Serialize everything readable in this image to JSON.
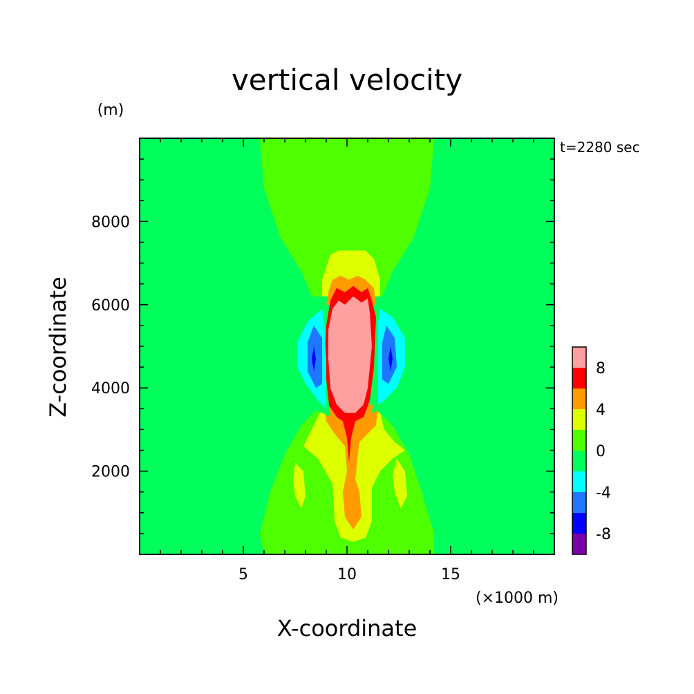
{
  "chart_data": {
    "type": "heatmap",
    "subtype": "filled-contour",
    "title": "vertical velocity",
    "y_unit_label": "(m)",
    "x_unit_label": "(×1000 m)",
    "time_label": "t=2280 sec",
    "xlabel": "X-coordinate",
    "ylabel": "Z-coordinate",
    "xlim": [
      0,
      20
    ],
    "ylim": [
      0,
      10000
    ],
    "x_ticks": [
      5,
      10,
      15
    ],
    "x_tick_labels": [
      "5",
      "10",
      "15"
    ],
    "y_ticks": [
      2000,
      4000,
      6000,
      8000
    ],
    "y_tick_labels": [
      "2000",
      "4000",
      "6000",
      "8000"
    ],
    "colorbar": {
      "levels": [
        -10,
        -8,
        -6,
        -4,
        -2,
        0,
        2,
        4,
        6,
        8,
        10
      ],
      "tick_values": [
        8,
        4,
        0,
        -4,
        -8
      ],
      "tick_labels": [
        "8",
        "4",
        "0",
        "-4",
        "-8"
      ],
      "colors": [
        "#7b00a8",
        "#0000ff",
        "#1e78ff",
        "#00ffff",
        "#00ff5a",
        "#4dff00",
        "#ddff00",
        "#ff9a00",
        "#ff0000",
        "#ffa0a0"
      ]
    },
    "contour_regions": [
      {
        "level": 0,
        "polygon": [
          [
            5.8,
            10000
          ],
          [
            14.2,
            10000
          ],
          [
            14.0,
            8800
          ],
          [
            13.2,
            7600
          ],
          [
            12.2,
            6800
          ],
          [
            11.7,
            6200
          ],
          [
            8.3,
            6200
          ],
          [
            7.8,
            6800
          ],
          [
            6.8,
            7600
          ],
          [
            6.0,
            8800
          ]
        ]
      },
      {
        "level": 0,
        "polygon": [
          [
            6.0,
            0
          ],
          [
            14.2,
            0
          ],
          [
            14.2,
            500
          ],
          [
            13.6,
            1500
          ],
          [
            13.0,
            2400
          ],
          [
            12.2,
            3100
          ],
          [
            11.4,
            3500
          ],
          [
            8.6,
            3500
          ],
          [
            7.8,
            3100
          ],
          [
            7.0,
            2400
          ],
          [
            6.3,
            1500
          ],
          [
            5.8,
            500
          ]
        ]
      },
      {
        "level": 2,
        "polygon": [
          [
            8.8,
            6600
          ],
          [
            9.2,
            7200
          ],
          [
            9.6,
            7300
          ],
          [
            10.9,
            7300
          ],
          [
            11.3,
            7100
          ],
          [
            11.6,
            6600
          ],
          [
            11.6,
            6200
          ],
          [
            8.8,
            6200
          ]
        ]
      },
      {
        "level": 2,
        "polygon": [
          [
            8.7,
            3400
          ],
          [
            11.6,
            3400
          ],
          [
            11.8,
            3000
          ],
          [
            12.3,
            2700
          ],
          [
            12.8,
            2500
          ],
          [
            12.2,
            2300
          ],
          [
            11.6,
            2000
          ],
          [
            11.2,
            1600
          ],
          [
            11.2,
            800
          ],
          [
            10.9,
            400
          ],
          [
            10.3,
            300
          ],
          [
            9.7,
            400
          ],
          [
            9.4,
            800
          ],
          [
            9.3,
            1700
          ],
          [
            8.6,
            2300
          ],
          [
            7.9,
            2600
          ],
          [
            8.3,
            3000
          ]
        ]
      },
      {
        "level": 2,
        "polygon": [
          [
            7.5,
            2200
          ],
          [
            7.9,
            2000
          ],
          [
            8.0,
            1400
          ],
          [
            7.8,
            1100
          ],
          [
            7.5,
            1400
          ],
          [
            7.4,
            1800
          ]
        ]
      },
      {
        "level": 2,
        "polygon": [
          [
            12.4,
            2300
          ],
          [
            12.8,
            2000
          ],
          [
            12.9,
            1400
          ],
          [
            12.6,
            1100
          ],
          [
            12.3,
            1500
          ],
          [
            12.2,
            1900
          ]
        ]
      },
      {
        "level": 4,
        "polygon": [
          [
            9.1,
            6300
          ],
          [
            9.3,
            6600
          ],
          [
            9.7,
            6700
          ],
          [
            10.1,
            6600
          ],
          [
            10.5,
            6700
          ],
          [
            10.9,
            6600
          ],
          [
            11.3,
            6400
          ],
          [
            11.4,
            6000
          ],
          [
            9.0,
            6000
          ]
        ]
      },
      {
        "level": 4,
        "polygon": [
          [
            8.9,
            3600
          ],
          [
            11.5,
            3600
          ],
          [
            11.4,
            3100
          ],
          [
            11.0,
            2900
          ],
          [
            10.6,
            2700
          ],
          [
            10.5,
            2300
          ],
          [
            10.4,
            1800
          ],
          [
            10.6,
            1500
          ],
          [
            10.7,
            900
          ],
          [
            10.3,
            600
          ],
          [
            9.9,
            900
          ],
          [
            9.8,
            1500
          ],
          [
            10.0,
            2000
          ],
          [
            9.9,
            2600
          ],
          [
            9.4,
            2900
          ],
          [
            9.0,
            3200
          ]
        ]
      },
      {
        "level": 6,
        "polygon": [
          [
            9.2,
            6100
          ],
          [
            9.5,
            6400
          ],
          [
            9.9,
            6300
          ],
          [
            10.3,
            6450
          ],
          [
            10.7,
            6300
          ],
          [
            11.0,
            6400
          ],
          [
            11.2,
            6100
          ],
          [
            11.4,
            5700
          ],
          [
            11.3,
            4500
          ],
          [
            11.1,
            3700
          ],
          [
            10.8,
            3300
          ],
          [
            10.4,
            3200
          ],
          [
            10.2,
            2800
          ],
          [
            10.1,
            2200
          ],
          [
            10.0,
            2800
          ],
          [
            9.8,
            3200
          ],
          [
            9.5,
            3300
          ],
          [
            9.1,
            3600
          ],
          [
            8.9,
            4400
          ],
          [
            9.0,
            5500
          ]
        ]
      },
      {
        "level": 8,
        "polygon": [
          [
            9.3,
            5900
          ],
          [
            9.6,
            6100
          ],
          [
            9.9,
            6000
          ],
          [
            10.3,
            6200
          ],
          [
            10.7,
            6050
          ],
          [
            11.0,
            6150
          ],
          [
            11.1,
            5800
          ],
          [
            11.2,
            5000
          ],
          [
            11.0,
            4000
          ],
          [
            10.8,
            3600
          ],
          [
            10.4,
            3400
          ],
          [
            9.9,
            3400
          ],
          [
            9.5,
            3600
          ],
          [
            9.2,
            4000
          ],
          [
            9.1,
            4700
          ],
          [
            9.1,
            5400
          ]
        ]
      },
      {
        "level": 10,
        "polygon": [
          [
            9.5,
            5800
          ],
          [
            9.7,
            5400
          ],
          [
            9.9,
            5600
          ],
          [
            10.0,
            5900
          ],
          [
            10.2,
            5700
          ],
          [
            10.4,
            5600
          ],
          [
            10.6,
            5900
          ],
          [
            10.8,
            5800
          ],
          [
            10.8,
            5200
          ],
          [
            11.0,
            4800
          ],
          [
            10.8,
            4200
          ],
          [
            10.6,
            3800
          ],
          [
            10.2,
            3600
          ],
          [
            9.8,
            3700
          ],
          [
            9.4,
            4000
          ],
          [
            9.3,
            4600
          ],
          [
            9.3,
            5300
          ]
        ]
      },
      {
        "level": -2,
        "polygon": [
          [
            8.6,
            6000
          ],
          [
            8.1,
            5900
          ],
          [
            7.5,
            5400
          ],
          [
            6.7,
            4900
          ],
          [
            6.7,
            4400
          ],
          [
            7.4,
            4100
          ],
          [
            8.2,
            3500
          ],
          [
            8.8,
            3400
          ],
          [
            9.2,
            3300
          ],
          [
            9.0,
            4200
          ],
          [
            8.9,
            5500
          ],
          [
            8.9,
            6100
          ]
        ]
      },
      {
        "level": -2,
        "polygon": [
          [
            11.6,
            6100
          ],
          [
            12.2,
            6100
          ],
          [
            12.9,
            5700
          ],
          [
            13.5,
            5000
          ],
          [
            13.6,
            4500
          ],
          [
            13.0,
            4100
          ],
          [
            12.3,
            3600
          ],
          [
            11.7,
            3500
          ],
          [
            11.2,
            3400
          ],
          [
            11.4,
            4200
          ],
          [
            11.4,
            5300
          ]
        ]
      },
      {
        "level": -4,
        "polygon": [
          [
            8.8,
            5900
          ],
          [
            8.1,
            5600
          ],
          [
            7.6,
            5100
          ],
          [
            7.6,
            4500
          ],
          [
            8.0,
            4100
          ],
          [
            8.6,
            3700
          ],
          [
            9.0,
            3500
          ],
          [
            9.0,
            4600
          ],
          [
            8.9,
            5600
          ]
        ]
      },
      {
        "level": -4,
        "polygon": [
          [
            11.6,
            5900
          ],
          [
            12.2,
            5700
          ],
          [
            12.8,
            5200
          ],
          [
            12.8,
            4500
          ],
          [
            12.4,
            4000
          ],
          [
            11.8,
            3700
          ],
          [
            11.5,
            3600
          ],
          [
            11.5,
            4800
          ],
          [
            11.5,
            5600
          ]
        ]
      },
      {
        "level": -6,
        "polygon": [
          [
            8.4,
            5500
          ],
          [
            8.1,
            5100
          ],
          [
            8.1,
            4400
          ],
          [
            8.5,
            4000
          ],
          [
            8.8,
            4100
          ],
          [
            8.8,
            5200
          ]
        ]
      },
      {
        "level": -6,
        "polygon": [
          [
            11.9,
            5500
          ],
          [
            12.3,
            5200
          ],
          [
            12.4,
            4500
          ],
          [
            12.0,
            4100
          ],
          [
            11.7,
            4200
          ],
          [
            11.7,
            5100
          ]
        ]
      },
      {
        "level": -8,
        "polygon": [
          [
            8.4,
            5000
          ],
          [
            8.3,
            4700
          ],
          [
            8.4,
            4400
          ],
          [
            8.5,
            4700
          ]
        ]
      },
      {
        "level": -8,
        "polygon": [
          [
            12.1,
            5000
          ],
          [
            12.2,
            4700
          ],
          [
            12.1,
            4400
          ],
          [
            12.0,
            4700
          ]
        ]
      }
    ]
  }
}
